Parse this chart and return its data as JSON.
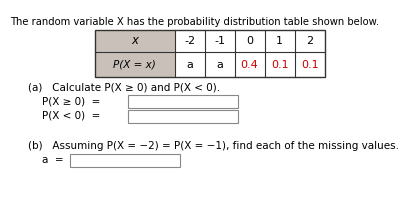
{
  "title": "The random variable Ø³ has the probability distribution table shown below.",
  "title_plain": "The random variable X has the probability distribution table shown below.",
  "table_x_label": "x",
  "table_x_values": [
    "-2",
    "-1",
    "0",
    "1",
    "2"
  ],
  "table_prob_label": "P(X = x)",
  "table_prob_values": [
    "a",
    "a",
    "0.4",
    "0.1",
    "0.1"
  ],
  "table_prob_colors": [
    "#000000",
    "#000000",
    "#cc0000",
    "#cc0000",
    "#cc0000"
  ],
  "part_a_label": "(a)   Calculate P(X ≥ 0) and P(X < 0).",
  "part_a_line1": "P(X ≥ 0)  =",
  "part_a_line2": "P(X < 0)  =",
  "part_b_label": "(b)   Assuming P(X = −2) = P(X = −1), find each of the missing values.",
  "part_b_line": "a  =",
  "header_bg": "#c9c1b9",
  "bg_color": "#ffffff",
  "text_color": "#000000",
  "box_border": "#888888"
}
